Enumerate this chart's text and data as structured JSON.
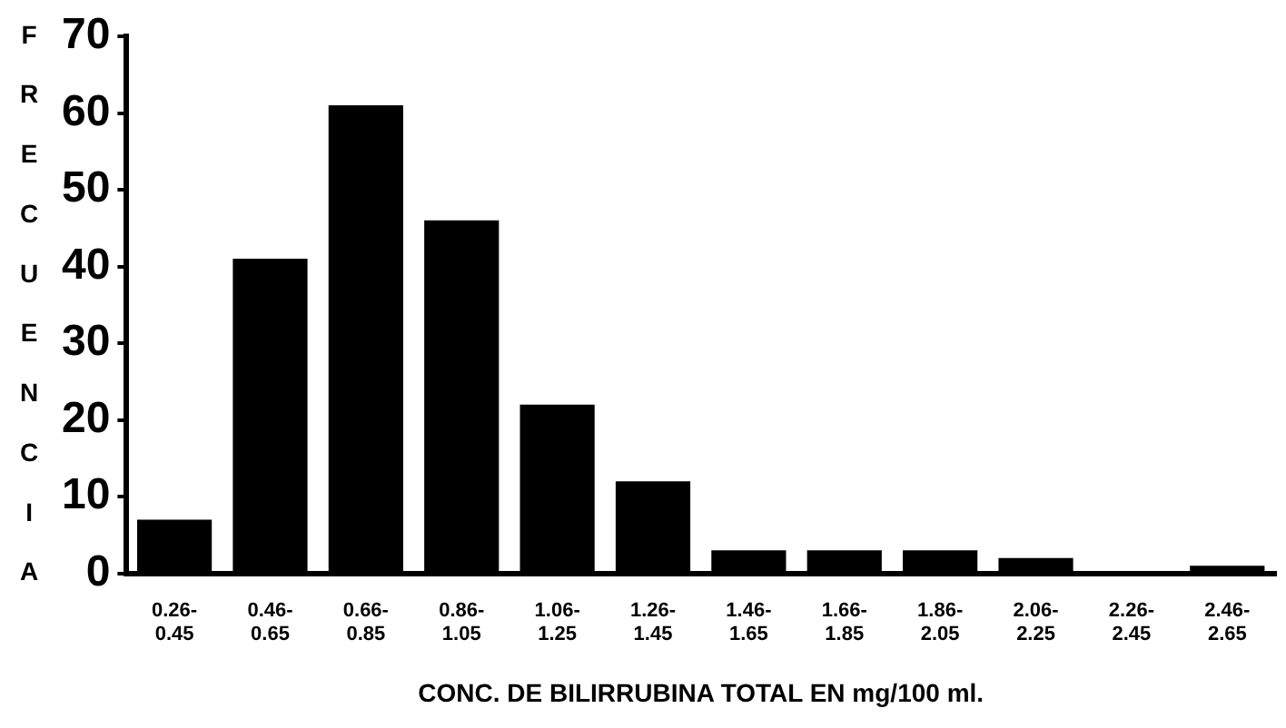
{
  "chart_data": {
    "type": "bar",
    "xlabel": "CONC. DE BILIRRUBINA TOTAL EN mg/100 ml.",
    "ylabel": "FRECUENCIA",
    "categories": [
      "0.26-0.45",
      "0.46-0.65",
      "0.66-0.85",
      "0.86-1.05",
      "1.06-1.25",
      "1.26-1.45",
      "1.46-1.65",
      "1.66-1.85",
      "1.86-2.05",
      "2.06-2.25",
      "2.26-2.45",
      "2.46-2.65"
    ],
    "values": [
      7,
      41,
      61,
      46,
      22,
      12,
      3,
      3,
      3,
      2,
      0,
      1
    ],
    "color": "#000000",
    "ylim": [
      0,
      70
    ],
    "yticks": [
      0,
      10,
      20,
      30,
      40,
      50,
      60,
      70
    ],
    "grid": false,
    "legend": false
  }
}
